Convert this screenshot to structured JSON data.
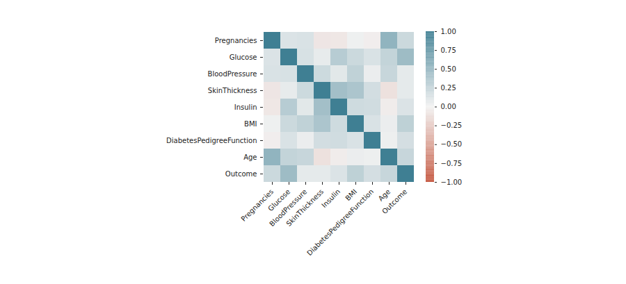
{
  "chart_data": {
    "type": "heatmap",
    "categories": [
      "Pregnancies",
      "Glucose",
      "BloodPressure",
      "SkinThickness",
      "Insulin",
      "BMI",
      "DiabetesPedigreeFunction",
      "Age",
      "Outcome"
    ],
    "cells": [
      [
        1,
        0.13,
        0.14,
        -0.08,
        -0.07,
        0.02,
        -0.03,
        0.54,
        0.22
      ],
      [
        0.13,
        1,
        0.15,
        0.06,
        0.33,
        0.22,
        0.14,
        0.26,
        0.47
      ],
      [
        0.14,
        0.15,
        1,
        0.21,
        0.09,
        0.28,
        0.04,
        0.24,
        0.07
      ],
      [
        -0.08,
        0.06,
        0.21,
        1,
        0.44,
        0.39,
        0.18,
        -0.11,
        0.07
      ],
      [
        -0.07,
        0.33,
        0.09,
        0.44,
        1,
        0.2,
        0.19,
        -0.04,
        0.13
      ],
      [
        0.02,
        0.22,
        0.28,
        0.39,
        0.2,
        1,
        0.14,
        0.04,
        0.29
      ],
      [
        -0.03,
        0.14,
        0.04,
        0.18,
        0.19,
        0.14,
        1,
        0.03,
        0.17
      ],
      [
        0.54,
        0.26,
        0.24,
        -0.11,
        -0.04,
        0.04,
        0.03,
        1,
        0.24
      ],
      [
        0.22,
        0.47,
        0.07,
        0.07,
        0.13,
        0.29,
        0.17,
        0.24,
        1
      ]
    ],
    "colorbar": {
      "lim": [
        -1,
        1
      ],
      "ticks": [
        {
          "value": -1,
          "label": "−1.00"
        },
        {
          "value": -0.75,
          "label": "−0.75"
        },
        {
          "value": -0.5,
          "label": "−0.50"
        },
        {
          "value": -0.25,
          "label": "−0.25"
        },
        {
          "value": 0,
          "label": "0.00"
        },
        {
          "value": 0.25,
          "label": "0.25"
        },
        {
          "value": 0.5,
          "label": "0.50"
        },
        {
          "value": 0.75,
          "label": "0.75"
        },
        {
          "value": 1,
          "label": "1.00"
        }
      ]
    }
  }
}
